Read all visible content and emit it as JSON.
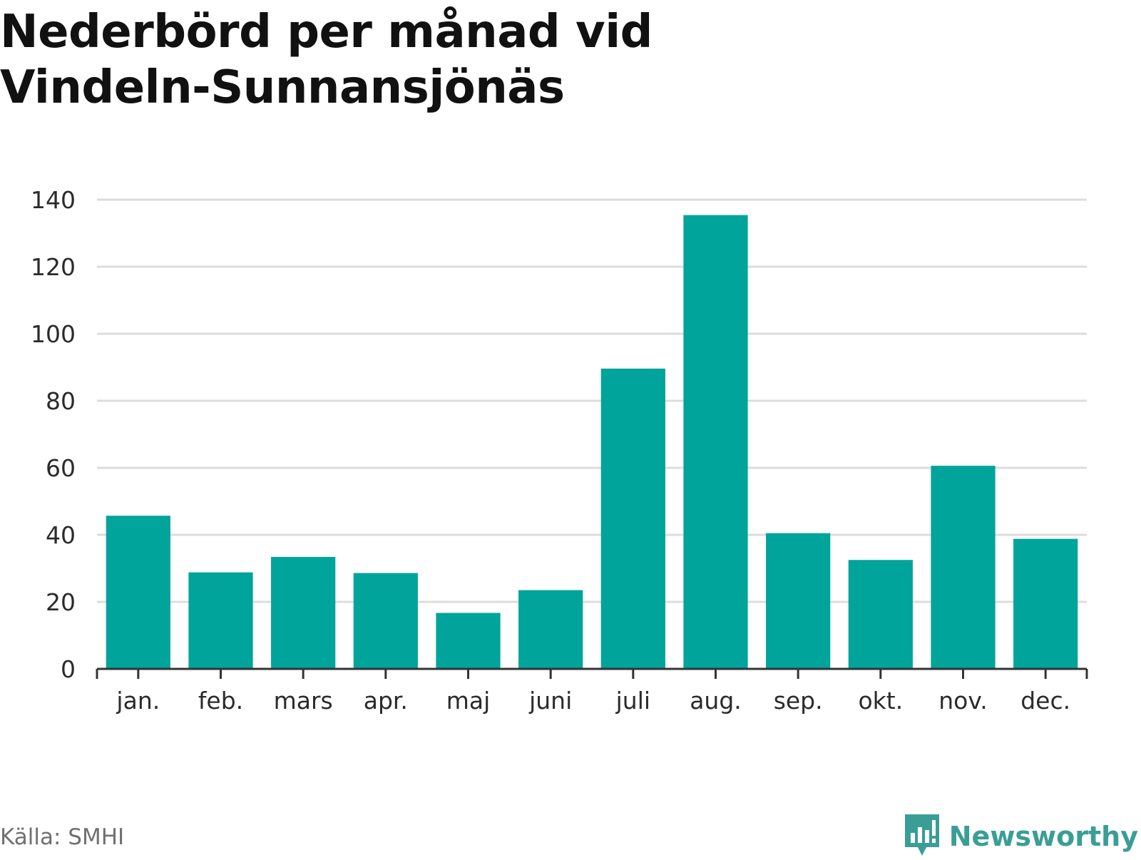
{
  "title": "Nederbörd per månad vid Vindeln-Sunnansjönäs",
  "source": "Källa: SMHI",
  "brand": {
    "name": "Newsworthy",
    "icon": "newsworthy-logo-icon"
  },
  "colors": {
    "bar": "#00a49a",
    "grid": "#dcdcdc",
    "axis": "#333333",
    "brand": "#3a9e96"
  },
  "chart_data": {
    "type": "bar",
    "title": "Nederbörd per månad vid Vindeln-Sunnansjönäs",
    "xlabel": "",
    "ylabel": "",
    "categories": [
      "jan.",
      "feb.",
      "mars",
      "apr.",
      "maj",
      "juni",
      "juli",
      "aug.",
      "sep.",
      "okt.",
      "nov.",
      "dec."
    ],
    "values": [
      45.7,
      28.8,
      33.4,
      28.6,
      16.7,
      23.5,
      89.6,
      135.4,
      40.5,
      32.5,
      60.6,
      38.8
    ],
    "ylim": [
      0,
      140
    ],
    "yticks": [
      0,
      20,
      40,
      60,
      80,
      100,
      120,
      140
    ],
    "grid": true,
    "legend": "none"
  }
}
